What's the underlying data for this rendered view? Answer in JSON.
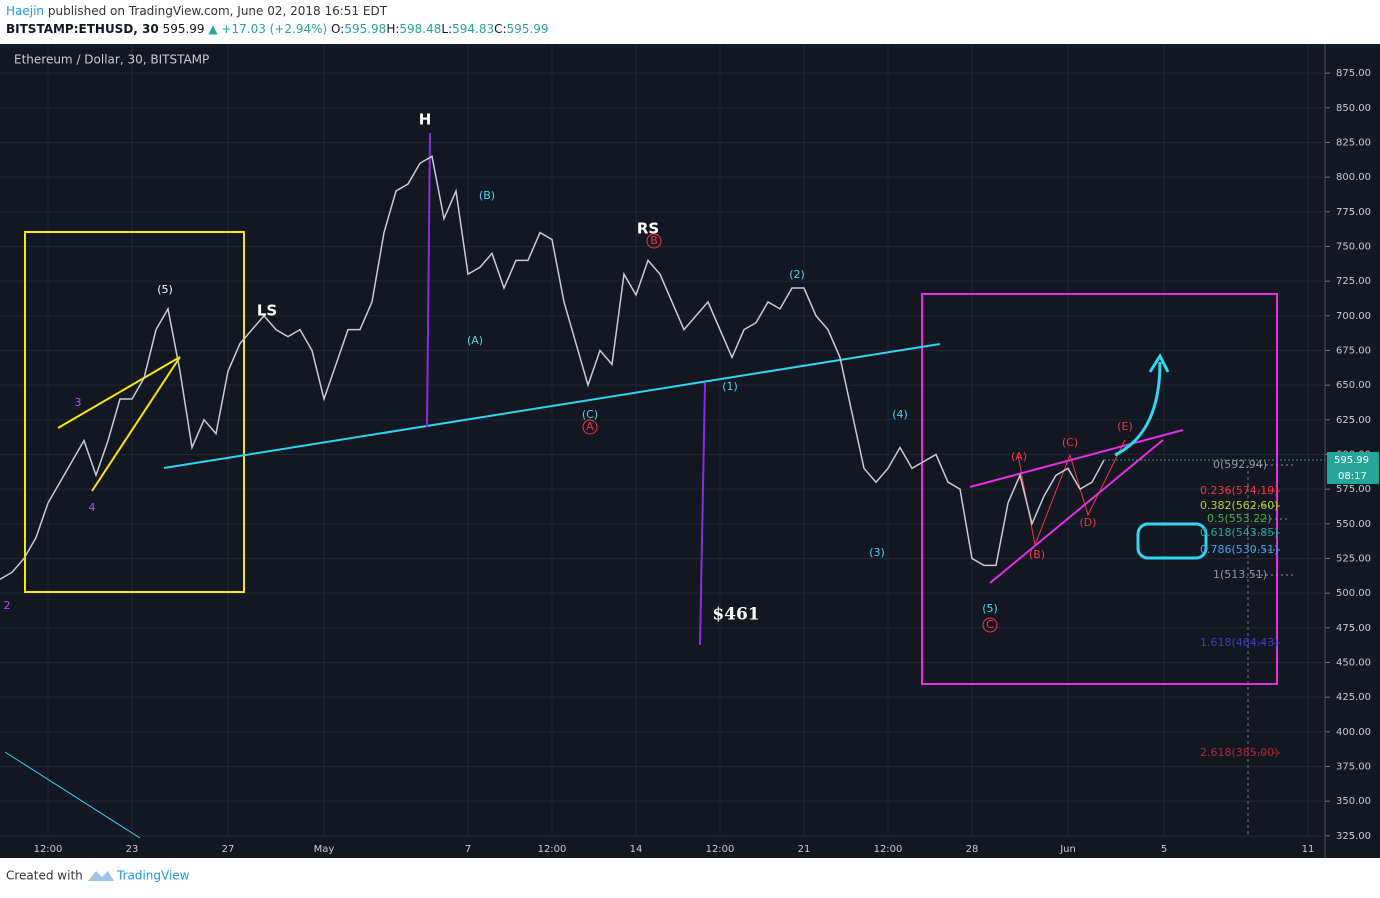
{
  "header": {
    "author": "Haejin",
    "published": "published on TradingView.com, June 02, 2018 16:51 EDT",
    "symbol": "BITSTAMP:ETHUSD, 30",
    "last": "595.99",
    "change": "▲ +17.03 (+2.94%)",
    "ohlc": [
      {
        "k": "O:",
        "v": "595.98"
      },
      {
        "k": "H:",
        "v": "598.48"
      },
      {
        "k": "L:",
        "v": "594.83"
      },
      {
        "k": "C:",
        "v": "595.99"
      }
    ]
  },
  "chart_data": {
    "type": "line",
    "title": "Ethereum / Dollar, 30, BITSTAMP",
    "color": "#c8cbd2",
    "grid": true,
    "categories": [
      null,
      null,
      null,
      null,
      "12:00",
      null,
      null,
      null,
      null,
      null,
      null,
      "23",
      null,
      null,
      null,
      null,
      null,
      null,
      null,
      "27",
      null,
      null,
      null,
      null,
      null,
      null,
      null,
      "May",
      null,
      null,
      null,
      null,
      null,
      null,
      null,
      null,
      null,
      null,
      null,
      "7",
      null,
      null,
      null,
      null,
      null,
      null,
      "12:00",
      null,
      null,
      null,
      null,
      null,
      null,
      "14",
      null,
      null,
      null,
      null,
      null,
      null,
      "12:00",
      null,
      null,
      null,
      null,
      null,
      null,
      "21",
      null,
      null,
      null,
      null,
      null,
      null,
      "12:00",
      null,
      null,
      null,
      null,
      null,
      null,
      "28",
      null,
      null,
      null,
      null,
      null,
      null,
      null,
      "Jun",
      null,
      null,
      null,
      null,
      null,
      null,
      null,
      "5",
      null,
      null,
      null,
      null,
      null,
      null,
      null,
      null,
      null,
      null,
      null,
      "11"
    ],
    "values": [
      510,
      515,
      525,
      540,
      565,
      580,
      595,
      610,
      585,
      610,
      640,
      640,
      655,
      690,
      705,
      660,
      605,
      625,
      615,
      660,
      680,
      690,
      700,
      690,
      685,
      690,
      675,
      640,
      665,
      690,
      690,
      710,
      760,
      790,
      795,
      810,
      815,
      770,
      790,
      730,
      735,
      745,
      720,
      740,
      740,
      760,
      755,
      710,
      680,
      650,
      675,
      665,
      730,
      715,
      740,
      730,
      710,
      690,
      700,
      710,
      690,
      670,
      690,
      695,
      710,
      705,
      720,
      720,
      700,
      690,
      670,
      630,
      590,
      580,
      590,
      605,
      590,
      595,
      600,
      580,
      575,
      525,
      520,
      520,
      565,
      585,
      550,
      570,
      585,
      590,
      575,
      580,
      596,
      null,
      null,
      null,
      null,
      null,
      null,
      null,
      null,
      null,
      null,
      null,
      null,
      null,
      null,
      null,
      null,
      null
    ],
    "ylim": [
      309,
      896
    ],
    "yticks": [
      {
        "value": 325,
        "label": "325.00"
      },
      {
        "value": 350,
        "label": "350.00"
      },
      {
        "value": 375,
        "label": "375.00"
      },
      {
        "value": 400,
        "label": "400.00"
      },
      {
        "value": 425,
        "label": "425.00"
      },
      {
        "value": 450,
        "label": "450.00"
      },
      {
        "value": 475,
        "label": "475.00"
      },
      {
        "value": 500,
        "label": "500.00"
      },
      {
        "value": 525,
        "label": "525.00"
      },
      {
        "value": 550,
        "label": "550.00"
      },
      {
        "value": 575,
        "label": "575.00"
      },
      {
        "value": 600,
        "label": "600.00"
      },
      {
        "value": 625,
        "label": "625.00"
      },
      {
        "value": 650,
        "label": "650.00"
      },
      {
        "value": 675,
        "label": "675.00"
      },
      {
        "value": 700,
        "label": "700.00"
      },
      {
        "value": 725,
        "label": "725.00"
      },
      {
        "value": 750,
        "label": "750.00"
      },
      {
        "value": 775,
        "label": "775.00"
      },
      {
        "value": 800,
        "label": "800.00"
      },
      {
        "value": 825,
        "label": "825.00"
      },
      {
        "value": 850,
        "label": "850.00"
      },
      {
        "value": 875,
        "label": "875.00"
      }
    ],
    "price_label": "595.99",
    "countdown": "08:17",
    "annotations": [
      {
        "text": "(5)",
        "color": "#ffffff"
      },
      {
        "text": "3",
        "color": "#b24fff"
      },
      {
        "text": "4",
        "color": "#b24fff"
      },
      {
        "text": "2",
        "color": "#b24fff"
      },
      {
        "text": "LS",
        "color": "#ffffff"
      },
      {
        "text": "H",
        "color": "#ffffff"
      },
      {
        "text": "(B)",
        "color": "#4dd6f0"
      },
      {
        "text": "(A)",
        "color": "#4dd6f0"
      },
      {
        "text": "(C)",
        "color": "#4dd6f0"
      },
      {
        "text": "A",
        "color": "#f23645"
      },
      {
        "text": "RS",
        "color": "#ffffff"
      },
      {
        "text": "B",
        "color": "#f23645"
      },
      {
        "text": "(2)",
        "color": "#4dd6f0"
      },
      {
        "text": "(1)",
        "color": "#4dd6f0"
      },
      {
        "text": "(4)",
        "color": "#4dd6f0"
      },
      {
        "text": "(3)",
        "color": "#4dd6f0"
      },
      {
        "text": "(5)",
        "color": "#4dd6f0"
      },
      {
        "text": "C",
        "color": "#f23645"
      },
      {
        "text": "(A)",
        "color": "#f23645"
      },
      {
        "text": "(B)",
        "color": "#f23645"
      },
      {
        "text": "(C)",
        "color": "#f23645"
      },
      {
        "text": "(D)",
        "color": "#f23645"
      },
      {
        "text": "(E)",
        "color": "#f23645"
      },
      {
        "text": "$461",
        "color": "#ffffff"
      },
      {
        "text": "0(592.94)",
        "color": "#9598a1"
      },
      {
        "text": "0.236(574.19)",
        "color": "#f23645"
      },
      {
        "text": "0.382(562.60)",
        "color": "#b5d334"
      },
      {
        "text": "0.5(553.22)",
        "color": "#4caf50"
      },
      {
        "text": "0.618(543.85)",
        "color": "#26a69a"
      },
      {
        "text": "0.786(530.51)",
        "color": "#42a5f5"
      },
      {
        "text": "1(513.51)",
        "color": "#9598a1"
      },
      {
        "text": "1.618(464.43)",
        "color": "#3f3fbf"
      },
      {
        "text": "2.618(385.00)",
        "color": "#b22833"
      }
    ]
  },
  "footer": {
    "created": "Created with",
    "brand": "TradingView"
  }
}
